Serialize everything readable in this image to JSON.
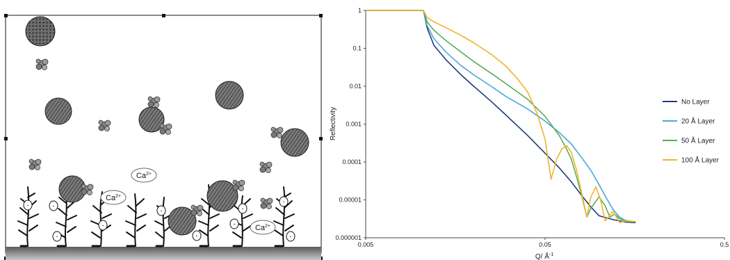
{
  "diagram": {
    "ion_label": "Ca",
    "ion_charge": "2+",
    "surface_charge": "-"
  },
  "chart_data": {
    "type": "line",
    "xlabel": "Q/ Å",
    "xlabel_superscript": "-1",
    "ylabel": "Reflectivity",
    "x_scale": "log",
    "y_scale": "log",
    "xlim": [
      0.005,
      0.5
    ],
    "ylim": [
      1e-06,
      1
    ],
    "x_ticks": [
      0.005,
      0.05,
      0.5
    ],
    "x_tick_labels": [
      "0.005",
      "0.05",
      "0.5"
    ],
    "y_ticks": [
      1,
      0.1,
      0.01,
      0.001,
      0.0001,
      1e-05,
      1e-06
    ],
    "y_tick_labels": [
      "1",
      "0.1",
      "0.01",
      "0.001",
      "0.0001",
      "0.00001",
      "0.000001"
    ],
    "legend_position": "right",
    "series": [
      {
        "name": "No Layer",
        "color": "#1f3a7a",
        "points": [
          [
            0.005,
            1
          ],
          [
            0.0105,
            1
          ],
          [
            0.011,
            0.35
          ],
          [
            0.012,
            0.12
          ],
          [
            0.014,
            0.05
          ],
          [
            0.017,
            0.02
          ],
          [
            0.02,
            0.01
          ],
          [
            0.025,
            0.004
          ],
          [
            0.03,
            0.0018
          ],
          [
            0.04,
            0.0005
          ],
          [
            0.05,
            0.00017
          ],
          [
            0.06,
            7e-05
          ],
          [
            0.07,
            3e-05
          ],
          [
            0.08,
            1.3e-05
          ],
          [
            0.09,
            6.5e-06
          ],
          [
            0.1,
            3.8e-06
          ],
          [
            0.12,
            3e-06
          ],
          [
            0.14,
            2.6e-06
          ],
          [
            0.16,
            2.5e-06
          ]
        ]
      },
      {
        "name": "20 Å Layer",
        "color": "#4aa8d8",
        "points": [
          [
            0.005,
            1
          ],
          [
            0.0105,
            1
          ],
          [
            0.011,
            0.4
          ],
          [
            0.012,
            0.18
          ],
          [
            0.014,
            0.08
          ],
          [
            0.017,
            0.035
          ],
          [
            0.02,
            0.02
          ],
          [
            0.025,
            0.01
          ],
          [
            0.03,
            0.0055
          ],
          [
            0.04,
            0.0025
          ],
          [
            0.05,
            0.0012
          ],
          [
            0.06,
            0.0006
          ],
          [
            0.07,
            0.0003
          ],
          [
            0.08,
            0.00013
          ],
          [
            0.09,
            6e-05
          ],
          [
            0.1,
            2.5e-05
          ],
          [
            0.11,
            1.1e-05
          ],
          [
            0.12,
            5.5e-06
          ],
          [
            0.13,
            3.5e-06
          ],
          [
            0.14,
            2.9e-06
          ],
          [
            0.16,
            2.6e-06
          ]
        ]
      },
      {
        "name": "50 Å Layer",
        "color": "#5aab5a",
        "points": [
          [
            0.005,
            1
          ],
          [
            0.0105,
            1
          ],
          [
            0.011,
            0.5
          ],
          [
            0.012,
            0.3
          ],
          [
            0.014,
            0.16
          ],
          [
            0.017,
            0.08
          ],
          [
            0.02,
            0.045
          ],
          [
            0.025,
            0.022
          ],
          [
            0.03,
            0.012
          ],
          [
            0.04,
            0.0045
          ],
          [
            0.05,
            0.0016
          ],
          [
            0.06,
            0.0005
          ],
          [
            0.065,
            0.00025
          ],
          [
            0.07,
            0.00012
          ],
          [
            0.075,
            4e-05
          ],
          [
            0.08,
            1.3e-05
          ],
          [
            0.0855,
            3.5e-06
          ],
          [
            0.09,
            6e-06
          ],
          [
            0.1,
            1.2e-05
          ],
          [
            0.108,
            7e-06
          ],
          [
            0.115,
            3.5e-06
          ],
          [
            0.122,
            4.2e-06
          ],
          [
            0.13,
            3.2e-06
          ],
          [
            0.14,
            2.7e-06
          ],
          [
            0.16,
            2.6e-06
          ]
        ]
      },
      {
        "name": "100 Å Layer",
        "color": "#f0b42a",
        "points": [
          [
            0.005,
            1
          ],
          [
            0.0105,
            1
          ],
          [
            0.011,
            0.65
          ],
          [
            0.012,
            0.5
          ],
          [
            0.014,
            0.35
          ],
          [
            0.017,
            0.22
          ],
          [
            0.02,
            0.14
          ],
          [
            0.025,
            0.07
          ],
          [
            0.03,
            0.035
          ],
          [
            0.035,
            0.016
          ],
          [
            0.04,
            0.007
          ],
          [
            0.045,
            0.002
          ],
          [
            0.05,
            0.0004
          ],
          [
            0.054,
            3.5e-05
          ],
          [
            0.058,
            0.00012
          ],
          [
            0.062,
            0.00022
          ],
          [
            0.066,
            0.00027
          ],
          [
            0.07,
            0.00018
          ],
          [
            0.075,
            6e-05
          ],
          [
            0.08,
            1.5e-05
          ],
          [
            0.0855,
            3.5e-06
          ],
          [
            0.09,
            1.2e-05
          ],
          [
            0.096,
            2.2e-05
          ],
          [
            0.102,
            1e-05
          ],
          [
            0.108,
            2.8e-06
          ],
          [
            0.113,
            3.5e-06
          ],
          [
            0.119,
            5e-06
          ],
          [
            0.125,
            3.5e-06
          ],
          [
            0.13,
            2.5e-06
          ],
          [
            0.14,
            2.8e-06
          ],
          [
            0.16,
            2.7e-06
          ]
        ]
      }
    ]
  }
}
